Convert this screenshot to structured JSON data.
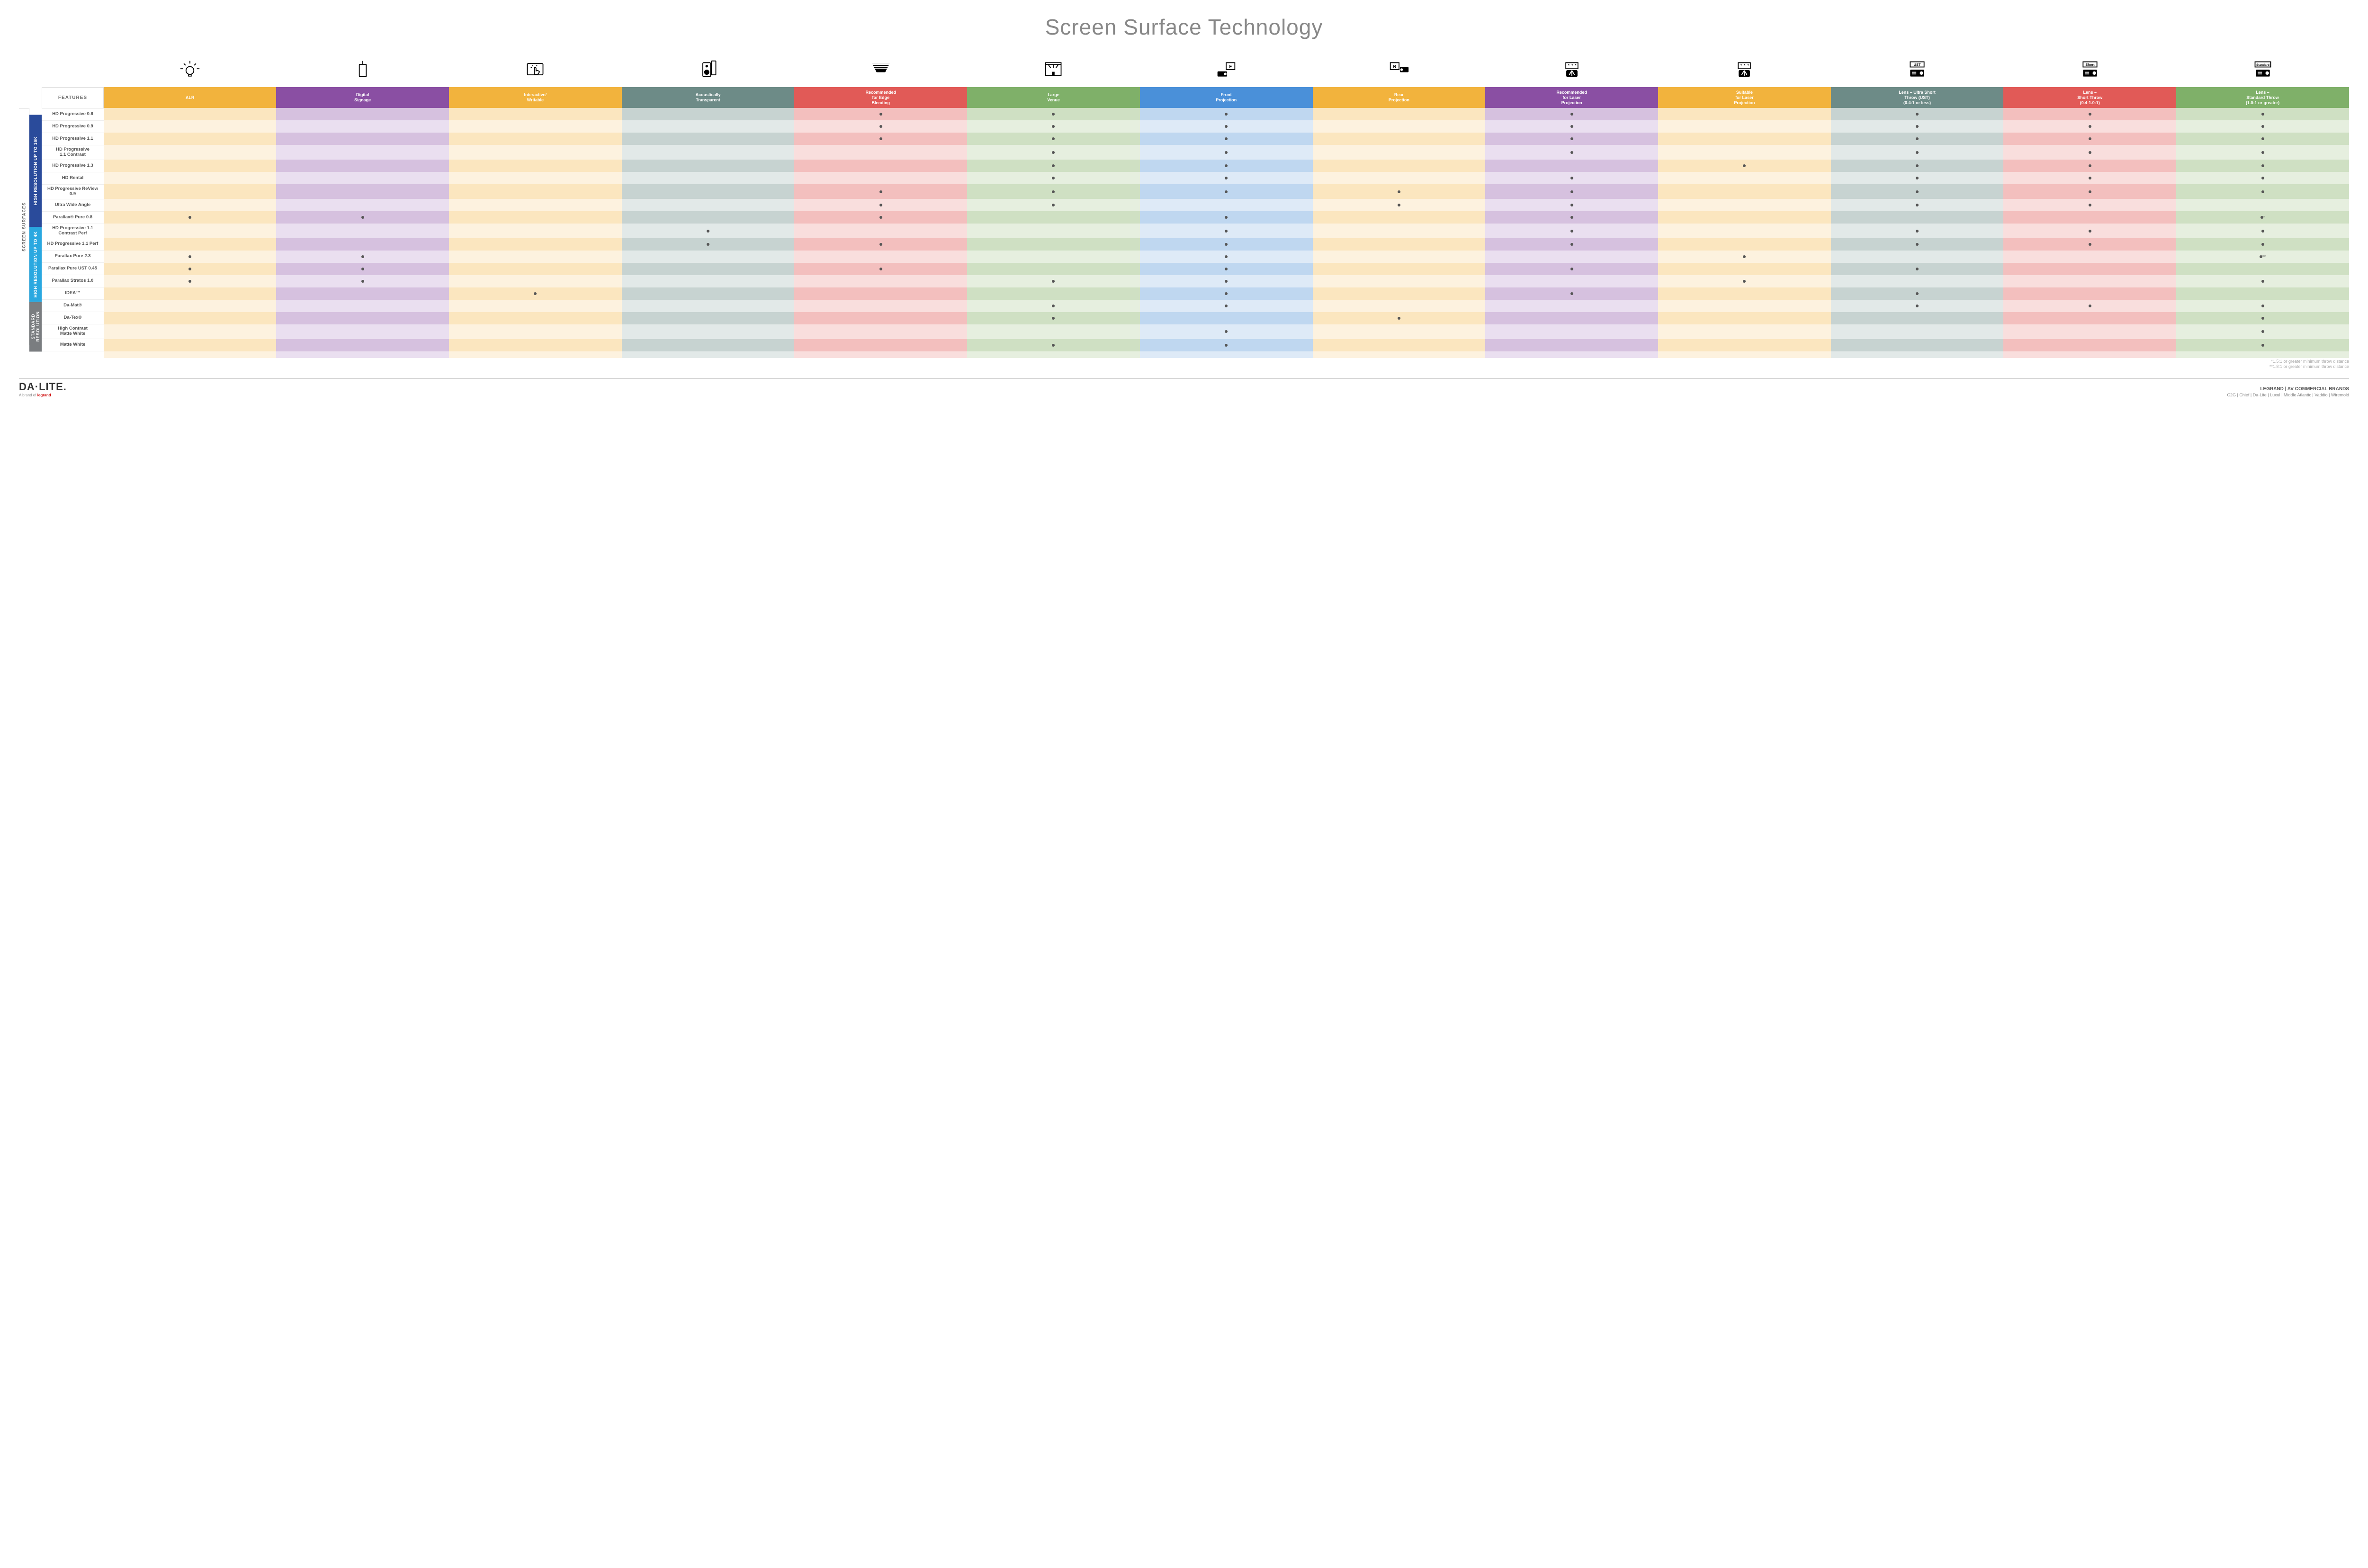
{
  "title": "Screen Surface Technology",
  "features_header": "FEATURES",
  "side_outer_label": "SCREEN SURFACES",
  "categories": [
    {
      "label": "HIGH RESOLUTION UP TO 16K",
      "color": "#2a4b9b",
      "rows": 9
    },
    {
      "label": "HIGH RESOLUTION UP TO 4K",
      "color": "#2aa8e0",
      "rows": 6
    },
    {
      "label": "STANDARD RESOLUTION",
      "color": "#7a7d80",
      "rows": 4
    }
  ],
  "columns": [
    {
      "key": "alr",
      "label": "ALR",
      "color": "#f2b33d",
      "light": "#fbe6bf",
      "lighter": "#fdf2df",
      "icon": "bulb"
    },
    {
      "key": "signage",
      "label": "Digital\nSignage",
      "color": "#8a4fa3",
      "light": "#d6c1df",
      "lighter": "#eadff0",
      "icon": "signage"
    },
    {
      "key": "writable",
      "label": "Interactive/\nWritable",
      "color": "#f2b33d",
      "light": "#fbe6bf",
      "lighter": "#fdf2df",
      "icon": "touch"
    },
    {
      "key": "acoustic",
      "label": "Acoustically\nTransparent",
      "color": "#6d8b87",
      "light": "#c7d3d1",
      "lighter": "#e2e9e8",
      "icon": "speaker"
    },
    {
      "key": "edge",
      "label": "Recommended\nfor Edge\nBlending",
      "color": "#e15a57",
      "light": "#f3bfbe",
      "lighter": "#f9dedd",
      "icon": "blend"
    },
    {
      "key": "venue",
      "label": "Large\nVenue",
      "color": "#7fb069",
      "light": "#cfe0c3",
      "lighter": "#e6efdf",
      "icon": "venue"
    },
    {
      "key": "front",
      "label": "Front\nProjection",
      "color": "#4a90d9",
      "light": "#bfd7f0",
      "lighter": "#deeaf7",
      "icon": "front"
    },
    {
      "key": "rear",
      "label": "Rear\nProjection",
      "color": "#f2b33d",
      "light": "#fbe6bf",
      "lighter": "#fdf2df",
      "icon": "rear"
    },
    {
      "key": "laser_r",
      "label": "Recommended\nfor Laser\nProjection",
      "color": "#8a4fa3",
      "light": "#d6c1df",
      "lighter": "#eadff0",
      "icon": "laser"
    },
    {
      "key": "laser_s",
      "label": "Suitable\nfor Laser\nProjection",
      "color": "#f2b33d",
      "light": "#fbe6bf",
      "lighter": "#fdf2df",
      "icon": "laser"
    },
    {
      "key": "ust",
      "label": "Lens – Ultra Short\nThrow (UST)\n(0.4:1 or less)",
      "color": "#6d8b87",
      "light": "#c7d3d1",
      "lighter": "#e2e9e8",
      "icon": "proj_ust"
    },
    {
      "key": "short",
      "label": "Lens –\nShort Throw\n(0.4-1.0:1)",
      "color": "#e15a57",
      "light": "#f3bfbe",
      "lighter": "#f9dedd",
      "icon": "proj_short"
    },
    {
      "key": "std",
      "label": "Lens –\nStandard Throw\n(1.0:1 or greater)",
      "color": "#7fb069",
      "light": "#cfe0c3",
      "lighter": "#e6efdf",
      "icon": "proj_std"
    }
  ],
  "rows": [
    {
      "label": "HD Progressive 0.6",
      "dots": {
        "edge": "•",
        "venue": "•",
        "front": "•",
        "laser_r": "•",
        "ust": "•",
        "short": "•",
        "std": "•"
      }
    },
    {
      "label": "HD Progressive 0.9",
      "dots": {
        "edge": "•",
        "venue": "•",
        "front": "•",
        "laser_r": "•",
        "ust": "•",
        "short": "•",
        "std": "•"
      }
    },
    {
      "label": "HD Progressive 1.1",
      "dots": {
        "edge": "•",
        "venue": "•",
        "front": "•",
        "laser_r": "•",
        "ust": "•",
        "short": "•",
        "std": "•"
      }
    },
    {
      "label": "HD Progressive\n1.1 Contrast",
      "dots": {
        "venue": "•",
        "front": "•",
        "laser_r": "•",
        "ust": "•",
        "short": "•",
        "std": "•"
      }
    },
    {
      "label": "HD Progressive 1.3",
      "dots": {
        "venue": "•",
        "front": "•",
        "laser_s": "•",
        "ust": "•",
        "short": "•",
        "std": "•"
      }
    },
    {
      "label": "HD Rental",
      "dots": {
        "venue": "•",
        "front": "•",
        "laser_r": "•",
        "ust": "•",
        "short": "•",
        "std": "•"
      }
    },
    {
      "label": "HD Progressive ReView 0.9",
      "dots": {
        "edge": "•",
        "venue": "•",
        "front": "•",
        "rear": "•",
        "laser_r": "•",
        "ust": "•",
        "short": "•",
        "std": "•"
      }
    },
    {
      "label": "Ultra Wide Angle",
      "dots": {
        "edge": "•",
        "venue": "•",
        "rear": "•",
        "laser_r": "•",
        "ust": "•",
        "short": "•"
      }
    },
    {
      "label": "Parallax® Pure 0.8",
      "dots": {
        "alr": "•",
        "signage": "•",
        "edge": "•",
        "front": "•",
        "laser_r": "•",
        "std": "•*"
      }
    },
    {
      "label": "HD Progressive 1.1\nContrast Perf",
      "dots": {
        "acoustic": "•",
        "front": "•",
        "laser_r": "•",
        "ust": "•",
        "short": "•",
        "std": "•"
      }
    },
    {
      "label": "HD Progressive 1.1 Perf",
      "dots": {
        "acoustic": "•",
        "edge": "•",
        "front": "•",
        "laser_r": "•",
        "ust": "•",
        "short": "•",
        "std": "•"
      }
    },
    {
      "label": "Parallax Pure 2.3",
      "dots": {
        "alr": "•",
        "signage": "•",
        "front": "•",
        "laser_s": "•",
        "std": "•**"
      }
    },
    {
      "label": "Parallax Pure UST 0.45",
      "dots": {
        "alr": "•",
        "signage": "•",
        "edge": "•",
        "front": "•",
        "laser_r": "•",
        "ust": "•"
      }
    },
    {
      "label": "Parallax Stratos 1.0",
      "dots": {
        "alr": "•",
        "signage": "•",
        "venue": "•",
        "front": "•",
        "laser_s": "•",
        "std": "•"
      }
    },
    {
      "label": "IDEA™",
      "dots": {
        "writable": "•",
        "front": "•",
        "laser_r": "•",
        "ust": "•"
      }
    },
    {
      "label": "Da-Mat®",
      "dots": {
        "venue": "•",
        "front": "•",
        "ust": "•",
        "short": "•",
        "std": "•"
      }
    },
    {
      "label": "Da-Tex®",
      "dots": {
        "venue": "•",
        "rear": "•",
        "std": "•"
      }
    },
    {
      "label": "High Contrast\nMatte White",
      "dots": {
        "front": "•",
        "std": "•"
      }
    },
    {
      "label": "Matte White",
      "dots": {
        "venue": "•",
        "front": "•",
        "std": "•"
      }
    }
  ],
  "footnotes": [
    "*1.5:1 or greater minimum throw distance",
    "**1.8:1 or greater minimum throw distance"
  ],
  "footer": {
    "logo_main": "DA·LITE.",
    "logo_sub_prefix": "A brand of ",
    "logo_sub_brand": "legrand",
    "right_title": "LEGRAND | AV COMMERCIAL BRANDS",
    "right_brands": "C2G  |  Chief  |  Da-Lite  |  Luxul  |  Middle Atlantic  |  Vaddio  |  Wiremold"
  },
  "icons_svg": {
    "bulb": "<svg viewBox='0 0 48 48' fill='none' stroke='#000' stroke-width='2'><circle cx='24' cy='26' r='9'/><path d='M21 35v4h6v-4M24 4v6M8 22H2M46 22h-6M10 10l4 4M38 10l-4 4'/></svg>",
    "signage": "<svg viewBox='0 0 48 48' fill='none' stroke='#000' stroke-width='2'><rect x='16' y='12' width='16' height='28' rx='1'/><line x1='24' y1='12' x2='24' y2='4'/></svg>",
    "touch": "<svg viewBox='0 0 48 48' fill='none' stroke='#000' stroke-width='2'><rect x='6' y='10' width='36' height='26' rx='2'/><path d='M22 30v-9a2 2 0 014 0v6l3-1 3 1 2 2-4 6h-8z'/><path d='M14 18l2 2M18 14l1 2M28 14l-1 2'/></svg>",
    "speaker": "<svg viewBox='0 0 48 48' fill='none' stroke='#000' stroke-width='2'><rect x='12' y='8' width='18' height='32' rx='2'/><circle cx='21' cy='30' r='5' fill='#000'/><circle cx='21' cy='16' r='2' fill='#000'/><rect x='32' y='4' width='10' height='32' rx='1' fill='#fff'/></svg>",
    "blend": "<svg viewBox='0 0 48 48' fill='#000'><path d='M4 10h40L34 30H14z'/><rect x='4' y='10' width='40' height='3' fill='#fff'/><rect x='4' y='16' width='40' height='2' fill='#fff'/><rect x='4' y='21' width='40' height='2' fill='#fff'/></svg>",
    "venue": "<svg viewBox='0 0 48 48' fill='none' stroke='#000' stroke-width='2'><rect x='6' y='8' width='36' height='30'/><path d='M6 12h36M12 12l6 8M24 12v8M36 12l-6 8' stroke='#000'/><rect x='22' y='30' width='4' height='8' fill='#000'/></svg>",
    "front": "<svg viewBox='0 0 48 48' fill='#000'><rect x='24' y='8' width='20' height='16' fill='none' stroke='#000' stroke-width='2'/><text x='34' y='20' font-size='10' text-anchor='middle' fill='#000'>F</text><rect x='4' y='28' width='22' height='12' rx='2'/><circle cx='22' cy='34' r='3' fill='#fff'/></svg>",
    "rear": "<svg viewBox='0 0 48 48' fill='#000'><rect x='4' y='8' width='20' height='16' fill='none' stroke='#000' stroke-width='2'/><text x='14' y='20' font-size='10' text-anchor='middle' fill='#000'>R</text><rect x='26' y='18' width='20' height='12' rx='2'/><circle cx='30' cy='24' r='3' fill='#fff'/></svg>",
    "laser": "<svg viewBox='0 0 48 48' fill='none' stroke='#000' stroke-width='2'><rect x='10' y='8' width='28' height='14'/><path d='M16 12l2 2M24 12l2 2M32 12l2 2'/><rect x='12' y='26' width='24' height='14' rx='2' fill='#000'/><path d='M24 26l-6 10M24 26l6 10M24 26v12' stroke='#fff'/></svg>",
    "proj_ust": "<svg viewBox='0 0 48 48' fill='#000'><rect x='8' y='6' width='32' height='12' fill='none' stroke='#000' stroke-width='2'/><text x='24' y='15' font-size='8' text-anchor='middle'>UST</text><rect x='8' y='24' width='32' height='16' rx='2'/><circle cx='34' cy='32' r='4' fill='#fff'/><rect x='12' y='29' width='10' height='2' fill='#fff'/><rect x='12' y='33' width='10' height='2' fill='#fff'/></svg>",
    "proj_short": "<svg viewBox='0 0 48 48' fill='#000'><rect x='8' y='6' width='32' height='12' fill='none' stroke='#000' stroke-width='2'/><text x='24' y='15' font-size='8' text-anchor='middle'>Short</text><rect x='8' y='24' width='32' height='16' rx='2'/><circle cx='34' cy='32' r='4' fill='#fff'/><rect x='12' y='29' width='10' height='2' fill='#fff'/><rect x='12' y='33' width='10' height='2' fill='#fff'/></svg>",
    "proj_std": "<svg viewBox='0 0 48 48' fill='#000'><rect x='6' y='6' width='36' height='12' fill='none' stroke='#000' stroke-width='2'/><text x='24' y='15' font-size='7' text-anchor='middle'>Standard</text><rect x='8' y='24' width='32' height='16' rx='2'/><circle cx='34' cy='32' r='4' fill='#fff'/><rect x='12' y='29' width='10' height='2' fill='#fff'/><rect x='12' y='33' width='10' height='2' fill='#fff'/></svg>"
  }
}
